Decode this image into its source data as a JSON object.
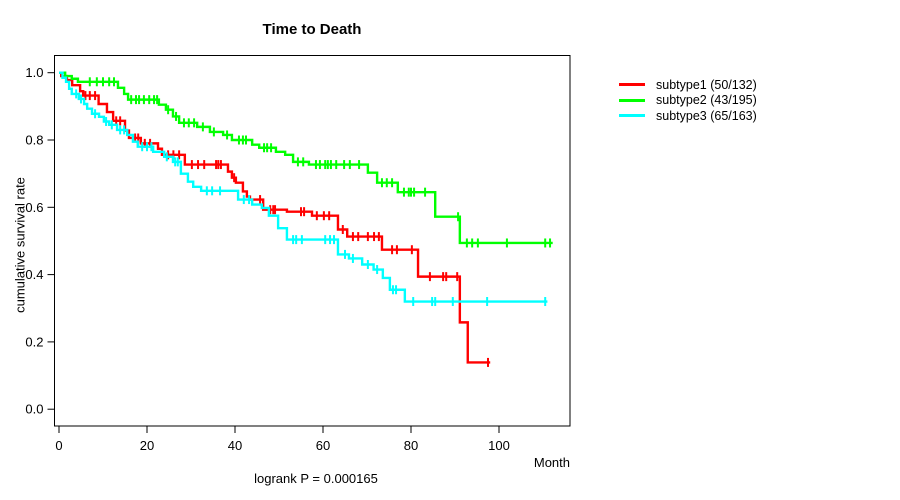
{
  "chart_data": {
    "type": "line",
    "variant": "kaplan-meier-step",
    "title": "Time to Death",
    "xlabel": "Month",
    "ylabel": "cumulative survival rate",
    "annotation": "logrank P = 0.000165",
    "logrank_p": "0.000165",
    "xlim": [
      0,
      116
    ],
    "ylim": [
      0.0,
      1.0
    ],
    "x_ticks": [
      0,
      20,
      40,
      60,
      80,
      100
    ],
    "y_ticks": [
      "0.0",
      "0.2",
      "0.4",
      "0.6",
      "0.8",
      "1.0"
    ],
    "grid": false,
    "legend_position": "right-outside",
    "series": [
      {
        "name": "subtype1",
        "label": "subtype1 (50/132)",
        "color": "#ff0000",
        "events": 50,
        "n": 132,
        "end_month": 98,
        "steps": [
          [
            0,
            1.0
          ],
          [
            0.5,
            0.99
          ],
          [
            1.8,
            0.978
          ],
          [
            3,
            0.963
          ],
          [
            4.8,
            0.945
          ],
          [
            5.5,
            0.932
          ],
          [
            9,
            0.907
          ],
          [
            10.9,
            0.883
          ],
          [
            12.3,
            0.857
          ],
          [
            15,
            0.828
          ],
          [
            15.9,
            0.806
          ],
          [
            18.6,
            0.79
          ],
          [
            22.5,
            0.774
          ],
          [
            23.4,
            0.756
          ],
          [
            28.6,
            0.727
          ],
          [
            38.4,
            0.706
          ],
          [
            39.3,
            0.688
          ],
          [
            40.2,
            0.673
          ],
          [
            41.8,
            0.647
          ],
          [
            42.7,
            0.632
          ],
          [
            43.4,
            0.623
          ],
          [
            46.4,
            0.593
          ],
          [
            51.8,
            0.587
          ],
          [
            57.5,
            0.575
          ],
          [
            63.4,
            0.534
          ],
          [
            65.5,
            0.513
          ],
          [
            73.4,
            0.474
          ],
          [
            81.6,
            0.394
          ],
          [
            91.1,
            0.258
          ],
          [
            92.9,
            0.139
          ]
        ],
        "censors": [
          [
            6,
            0.932
          ],
          [
            7,
            0.932
          ],
          [
            8.2,
            0.932
          ],
          [
            13,
            0.857
          ],
          [
            13.9,
            0.857
          ],
          [
            17.3,
            0.806
          ],
          [
            18,
            0.806
          ],
          [
            19.5,
            0.79
          ],
          [
            20.7,
            0.79
          ],
          [
            24.8,
            0.756
          ],
          [
            26,
            0.756
          ],
          [
            27.3,
            0.756
          ],
          [
            30.2,
            0.727
          ],
          [
            31.6,
            0.727
          ],
          [
            33,
            0.727
          ],
          [
            35.7,
            0.727
          ],
          [
            36.2,
            0.727
          ],
          [
            36.8,
            0.727
          ],
          [
            39.8,
            0.688
          ],
          [
            45.7,
            0.623
          ],
          [
            48,
            0.593
          ],
          [
            48.7,
            0.593
          ],
          [
            49.1,
            0.593
          ],
          [
            55,
            0.587
          ],
          [
            55.7,
            0.587
          ],
          [
            58.6,
            0.575
          ],
          [
            60.2,
            0.575
          ],
          [
            61.4,
            0.575
          ],
          [
            64.5,
            0.534
          ],
          [
            66.8,
            0.513
          ],
          [
            68,
            0.513
          ],
          [
            70.2,
            0.513
          ],
          [
            71.6,
            0.513
          ],
          [
            72.7,
            0.513
          ],
          [
            75.7,
            0.474
          ],
          [
            76.8,
            0.474
          ],
          [
            80.2,
            0.474
          ],
          [
            84.3,
            0.394
          ],
          [
            87.3,
            0.394
          ],
          [
            88,
            0.394
          ],
          [
            90.5,
            0.394
          ],
          [
            97.5,
            0.139
          ]
        ]
      },
      {
        "name": "subtype2",
        "label": "subtype2 (43/195)",
        "color": "#00ff00",
        "events": 43,
        "n": 195,
        "end_month": 112.2,
        "steps": [
          [
            0,
            1.0
          ],
          [
            1.4,
            0.99
          ],
          [
            2.9,
            0.982
          ],
          [
            4.3,
            0.973
          ],
          [
            13.4,
            0.955
          ],
          [
            14.8,
            0.937
          ],
          [
            15.7,
            0.92
          ],
          [
            22.7,
            0.905
          ],
          [
            24.3,
            0.89
          ],
          [
            25.9,
            0.87
          ],
          [
            27.3,
            0.851
          ],
          [
            31.4,
            0.839
          ],
          [
            34.3,
            0.824
          ],
          [
            37.3,
            0.815
          ],
          [
            39.3,
            0.8
          ],
          [
            43.9,
            0.786
          ],
          [
            45.5,
            0.777
          ],
          [
            49.3,
            0.765
          ],
          [
            51.4,
            0.756
          ],
          [
            53.2,
            0.735
          ],
          [
            56.8,
            0.727
          ],
          [
            70.2,
            0.703
          ],
          [
            72.3,
            0.673
          ],
          [
            77,
            0.645
          ],
          [
            85.5,
            0.572
          ],
          [
            91.1,
            0.494
          ]
        ],
        "censors": [
          [
            7,
            0.973
          ],
          [
            8.6,
            0.973
          ],
          [
            10,
            0.973
          ],
          [
            11.4,
            0.973
          ],
          [
            12.5,
            0.973
          ],
          [
            16.4,
            0.92
          ],
          [
            17.5,
            0.92
          ],
          [
            18.2,
            0.92
          ],
          [
            19.3,
            0.92
          ],
          [
            20.5,
            0.92
          ],
          [
            21.6,
            0.92
          ],
          [
            22.3,
            0.92
          ],
          [
            24.8,
            0.89
          ],
          [
            26.6,
            0.87
          ],
          [
            28.4,
            0.851
          ],
          [
            29.5,
            0.851
          ],
          [
            30.7,
            0.851
          ],
          [
            32.7,
            0.839
          ],
          [
            35.2,
            0.824
          ],
          [
            38.2,
            0.815
          ],
          [
            40.9,
            0.8
          ],
          [
            41.8,
            0.8
          ],
          [
            42.5,
            0.8
          ],
          [
            46.6,
            0.777
          ],
          [
            47.3,
            0.777
          ],
          [
            48.2,
            0.777
          ],
          [
            54.3,
            0.735
          ],
          [
            55.5,
            0.735
          ],
          [
            58.4,
            0.727
          ],
          [
            59.3,
            0.727
          ],
          [
            60.5,
            0.727
          ],
          [
            61.1,
            0.727
          ],
          [
            61.8,
            0.727
          ],
          [
            63,
            0.727
          ],
          [
            64.8,
            0.727
          ],
          [
            66.1,
            0.727
          ],
          [
            68.2,
            0.727
          ],
          [
            73.4,
            0.673
          ],
          [
            74.5,
            0.673
          ],
          [
            75.7,
            0.673
          ],
          [
            78.4,
            0.645
          ],
          [
            79.5,
            0.645
          ],
          [
            80,
            0.645
          ],
          [
            80.7,
            0.645
          ],
          [
            83.2,
            0.645
          ],
          [
            90.7,
            0.572
          ],
          [
            92.7,
            0.494
          ],
          [
            93.9,
            0.494
          ],
          [
            95.2,
            0.494
          ],
          [
            101.8,
            0.494
          ],
          [
            110.5,
            0.494
          ],
          [
            111.6,
            0.494
          ]
        ]
      },
      {
        "name": "subtype3",
        "label": "subtype3 (65/163)",
        "color": "#00ffff",
        "events": 65,
        "n": 163,
        "end_month": 111,
        "steps": [
          [
            0,
            1.0
          ],
          [
            0.8,
            0.985
          ],
          [
            1.6,
            0.973
          ],
          [
            2.3,
            0.952
          ],
          [
            2.9,
            0.937
          ],
          [
            4.5,
            0.922
          ],
          [
            5.7,
            0.907
          ],
          [
            6.4,
            0.893
          ],
          [
            7.5,
            0.878
          ],
          [
            9.1,
            0.869
          ],
          [
            10.2,
            0.855
          ],
          [
            11.4,
            0.845
          ],
          [
            13.2,
            0.83
          ],
          [
            15.5,
            0.815
          ],
          [
            16.8,
            0.795
          ],
          [
            17.9,
            0.78
          ],
          [
            21.4,
            0.765
          ],
          [
            23.9,
            0.75
          ],
          [
            25.9,
            0.735
          ],
          [
            27.7,
            0.7
          ],
          [
            29.3,
            0.676
          ],
          [
            30.5,
            0.661
          ],
          [
            32.3,
            0.649
          ],
          [
            40.7,
            0.623
          ],
          [
            43.9,
            0.608
          ],
          [
            46.1,
            0.598
          ],
          [
            47.7,
            0.575
          ],
          [
            49.8,
            0.538
          ],
          [
            51.8,
            0.504
          ],
          [
            63.4,
            0.46
          ],
          [
            65.9,
            0.448
          ],
          [
            68.9,
            0.43
          ],
          [
            71.5,
            0.415
          ],
          [
            73.6,
            0.39
          ],
          [
            75.2,
            0.355
          ],
          [
            78.6,
            0.32
          ]
        ],
        "censors": [
          [
            3.9,
            0.937
          ],
          [
            5,
            0.922
          ],
          [
            8.2,
            0.878
          ],
          [
            10.7,
            0.855
          ],
          [
            12,
            0.845
          ],
          [
            13.9,
            0.83
          ],
          [
            14.8,
            0.83
          ],
          [
            18.9,
            0.78
          ],
          [
            20,
            0.78
          ],
          [
            21,
            0.78
          ],
          [
            24.5,
            0.75
          ],
          [
            26.4,
            0.735
          ],
          [
            27,
            0.735
          ],
          [
            33.6,
            0.649
          ],
          [
            34.8,
            0.649
          ],
          [
            36.6,
            0.649
          ],
          [
            42,
            0.623
          ],
          [
            43.2,
            0.623
          ],
          [
            53.2,
            0.504
          ],
          [
            53.9,
            0.504
          ],
          [
            55.2,
            0.504
          ],
          [
            60.5,
            0.504
          ],
          [
            61.6,
            0.504
          ],
          [
            62.5,
            0.504
          ],
          [
            65,
            0.46
          ],
          [
            66.8,
            0.448
          ],
          [
            70.2,
            0.43
          ],
          [
            72.3,
            0.415
          ],
          [
            75.9,
            0.355
          ],
          [
            76.6,
            0.355
          ],
          [
            80.5,
            0.32
          ],
          [
            84.8,
            0.32
          ],
          [
            85.5,
            0.32
          ],
          [
            89.5,
            0.32
          ],
          [
            97.3,
            0.32
          ],
          [
            110.5,
            0.32
          ]
        ]
      }
    ]
  }
}
